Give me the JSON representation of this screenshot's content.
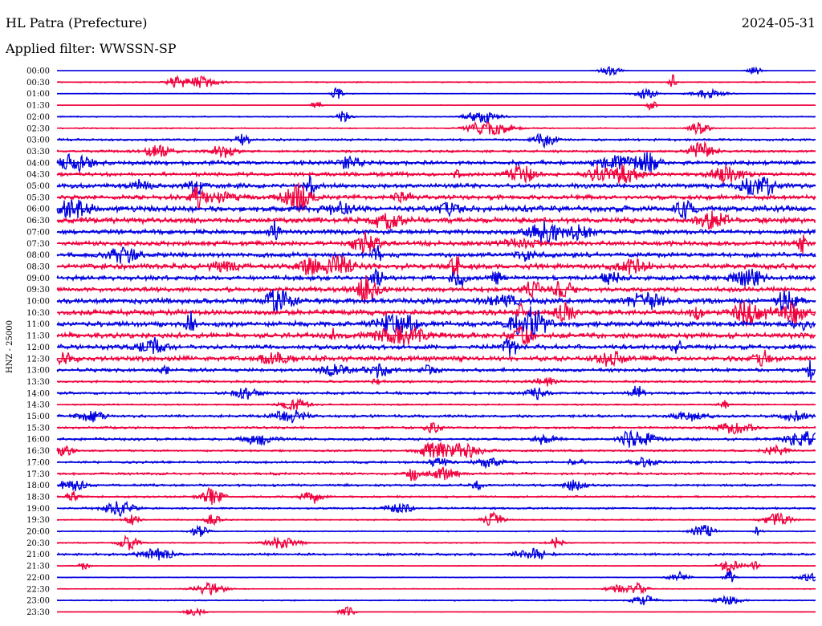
{
  "header": {
    "station": "HL Patra (Prefecture)",
    "date": "2024-05-31",
    "filter": "Applied filter: WWSSN-SP"
  },
  "axis": {
    "ylabel": "HNZ - 25000"
  },
  "colors": {
    "even_hour": "#0000e0",
    "half_hour": "#f0003c",
    "text": "#000000",
    "background": "#ffffff"
  },
  "chart_data": {
    "type": "line",
    "title": "",
    "ylabel": "HNZ - 25000",
    "rows": [
      {
        "time": "00:00",
        "amp": 0.0
      },
      {
        "time": "00:30",
        "amp": 0.15
      },
      {
        "time": "01:00",
        "amp": 0.1
      },
      {
        "time": "01:30",
        "amp": 0.05
      },
      {
        "time": "02:00",
        "amp": 0.15
      },
      {
        "time": "02:30",
        "amp": 0.15
      },
      {
        "time": "03:00",
        "amp": 0.3
      },
      {
        "time": "03:30",
        "amp": 0.3
      },
      {
        "time": "04:00",
        "amp": 0.55
      },
      {
        "time": "04:30",
        "amp": 0.5
      },
      {
        "time": "05:00",
        "amp": 0.6
      },
      {
        "time": "05:30",
        "amp": 0.6
      },
      {
        "time": "06:00",
        "amp": 0.8
      },
      {
        "time": "06:30",
        "amp": 0.7
      },
      {
        "time": "07:00",
        "amp": 0.6
      },
      {
        "time": "07:30",
        "amp": 0.6
      },
      {
        "time": "08:00",
        "amp": 0.6
      },
      {
        "time": "08:30",
        "amp": 0.7
      },
      {
        "time": "09:00",
        "amp": 0.6
      },
      {
        "time": "09:30",
        "amp": 0.6
      },
      {
        "time": "10:00",
        "amp": 0.7
      },
      {
        "time": "10:30",
        "amp": 0.7
      },
      {
        "time": "11:00",
        "amp": 0.7
      },
      {
        "time": "11:30",
        "amp": 0.7
      },
      {
        "time": "12:00",
        "amp": 0.6
      },
      {
        "time": "12:30",
        "amp": 0.65
      },
      {
        "time": "13:00",
        "amp": 0.45
      },
      {
        "time": "13:30",
        "amp": 0.3
      },
      {
        "time": "14:00",
        "amp": 0.35
      },
      {
        "time": "14:30",
        "amp": 0.2
      },
      {
        "time": "15:00",
        "amp": 0.35
      },
      {
        "time": "15:30",
        "amp": 0.3
      },
      {
        "time": "16:00",
        "amp": 0.35
      },
      {
        "time": "16:30",
        "amp": 0.25
      },
      {
        "time": "17:00",
        "amp": 0.3
      },
      {
        "time": "17:30",
        "amp": 0.3
      },
      {
        "time": "18:00",
        "amp": 0.3
      },
      {
        "time": "18:30",
        "amp": 0.25
      },
      {
        "time": "19:00",
        "amp": 0.25
      },
      {
        "time": "19:30",
        "amp": 0.15
      },
      {
        "time": "20:00",
        "amp": 0.15
      },
      {
        "time": "20:30",
        "amp": 0.15
      },
      {
        "time": "21:00",
        "amp": 0.3
      },
      {
        "time": "21:30",
        "amp": 0.1
      },
      {
        "time": "22:00",
        "amp": 0.1
      },
      {
        "time": "22:30",
        "amp": 0.1
      },
      {
        "time": "23:00",
        "amp": 0.15
      },
      {
        "time": "23:30",
        "amp": 0.05
      }
    ]
  }
}
